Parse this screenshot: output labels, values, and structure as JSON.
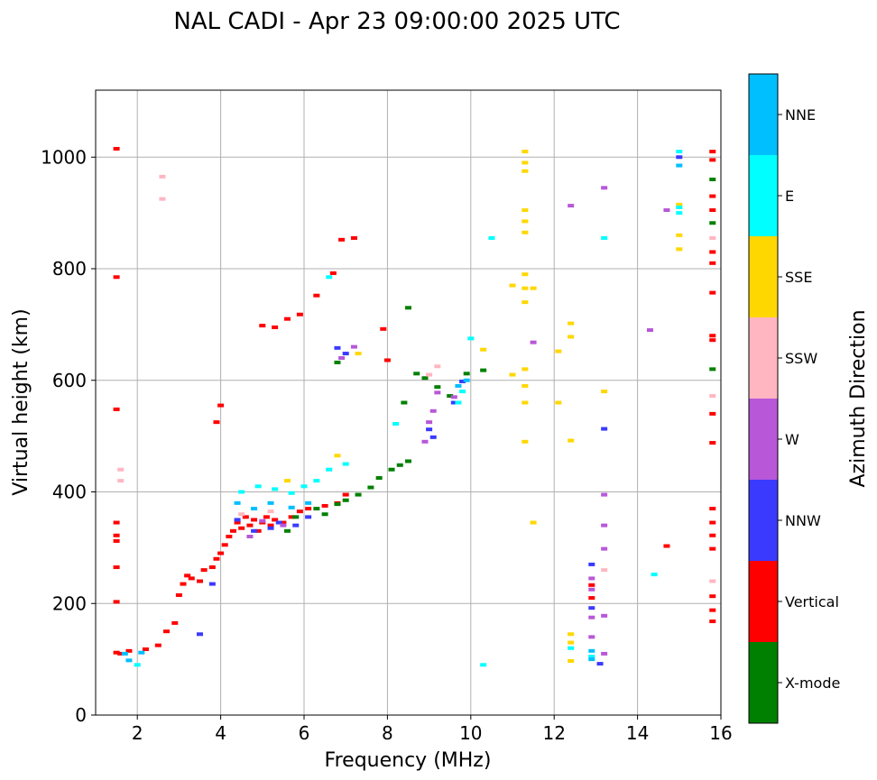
{
  "chart_data": {
    "type": "scatter",
    "title": "NAL CADI - Apr 23 09:00:00 2025 UTC",
    "xlabel": "Frequency (MHz)",
    "ylabel": "Virtual height (km)",
    "xlim": [
      1,
      16
    ],
    "ylim": [
      0,
      1120
    ],
    "xticks": [
      2,
      4,
      6,
      8,
      10,
      12,
      14,
      16
    ],
    "xtick_labels": [
      "2",
      "4",
      "6",
      "8",
      "10",
      "12",
      "14",
      "16"
    ],
    "yticks": [
      0,
      200,
      400,
      600,
      800,
      1000
    ],
    "ytick_labels": [
      "0",
      "200",
      "400",
      "600",
      "800",
      "1000"
    ],
    "grid": true,
    "colorbar": {
      "label": "Azimuth Direction",
      "categories": [
        {
          "name": "X-mode",
          "color": "#008000"
        },
        {
          "name": "Vertical",
          "color": "#ff0000"
        },
        {
          "name": "NNW",
          "color": "#3a3aff"
        },
        {
          "name": "W",
          "color": "#b857d8"
        },
        {
          "name": "SSW",
          "color": "#ffb6c1"
        },
        {
          "name": "SSE",
          "color": "#ffd700"
        },
        {
          "name": "E",
          "color": "#00ffff"
        },
        {
          "name": "NNE",
          "color": "#00bfff"
        }
      ]
    },
    "series": [
      {
        "name": "Vertical",
        "color": "#ff0000",
        "points": [
          [
            1.5,
            112
          ],
          [
            1.6,
            110
          ],
          [
            1.8,
            115
          ],
          [
            2.2,
            118
          ],
          [
            2.5,
            125
          ],
          [
            2.7,
            150
          ],
          [
            2.9,
            165
          ],
          [
            3.0,
            215
          ],
          [
            3.1,
            235
          ],
          [
            3.2,
            250
          ],
          [
            3.3,
            245
          ],
          [
            3.5,
            240
          ],
          [
            3.6,
            260
          ],
          [
            3.8,
            265
          ],
          [
            3.9,
            280
          ],
          [
            4.0,
            290
          ],
          [
            4.1,
            305
          ],
          [
            4.2,
            320
          ],
          [
            4.3,
            330
          ],
          [
            4.4,
            345
          ],
          [
            4.5,
            335
          ],
          [
            4.6,
            355
          ],
          [
            4.7,
            340
          ],
          [
            4.8,
            350
          ],
          [
            4.9,
            330
          ],
          [
            5.0,
            345
          ],
          [
            5.1,
            355
          ],
          [
            5.2,
            340
          ],
          [
            5.3,
            350
          ],
          [
            5.5,
            345
          ],
          [
            5.7,
            355
          ],
          [
            5.9,
            365
          ],
          [
            6.1,
            370
          ],
          [
            6.5,
            375
          ],
          [
            6.8,
            380
          ],
          [
            7.0,
            395
          ],
          [
            3.9,
            525
          ],
          [
            4.0,
            555
          ],
          [
            5.0,
            698
          ],
          [
            5.3,
            695
          ],
          [
            5.6,
            710
          ],
          [
            5.9,
            718
          ],
          [
            6.3,
            752
          ],
          [
            6.7,
            792
          ],
          [
            6.9,
            852
          ],
          [
            7.2,
            855
          ],
          [
            1.5,
            1015
          ],
          [
            1.5,
            785
          ],
          [
            1.5,
            548
          ],
          [
            1.5,
            345
          ],
          [
            1.5,
            322
          ],
          [
            1.5,
            312
          ],
          [
            1.5,
            265
          ],
          [
            1.5,
            203
          ],
          [
            15.8,
            1010
          ],
          [
            15.8,
            995
          ],
          [
            15.8,
            930
          ],
          [
            15.8,
            905
          ],
          [
            15.8,
            830
          ],
          [
            15.8,
            810
          ],
          [
            15.8,
            757
          ],
          [
            15.8,
            680
          ],
          [
            15.8,
            672
          ],
          [
            15.8,
            540
          ],
          [
            15.8,
            488
          ],
          [
            15.8,
            370
          ],
          [
            15.8,
            345
          ],
          [
            15.8,
            322
          ],
          [
            15.8,
            298
          ],
          [
            15.8,
            213
          ],
          [
            15.8,
            188
          ],
          [
            15.8,
            168
          ],
          [
            14.7,
            303
          ],
          [
            12.9,
            233
          ],
          [
            12.9,
            210
          ],
          [
            8.0,
            636
          ],
          [
            7.9,
            692
          ]
        ]
      },
      {
        "name": "X-mode",
        "color": "#008000",
        "points": [
          [
            5.6,
            330
          ],
          [
            5.8,
            355
          ],
          [
            6.3,
            370
          ],
          [
            6.5,
            360
          ],
          [
            6.8,
            378
          ],
          [
            7.0,
            385
          ],
          [
            7.3,
            395
          ],
          [
            7.6,
            408
          ],
          [
            7.8,
            425
          ],
          [
            8.1,
            440
          ],
          [
            8.3,
            448
          ],
          [
            8.5,
            455
          ],
          [
            8.7,
            612
          ],
          [
            8.9,
            604
          ],
          [
            9.2,
            588
          ],
          [
            9.5,
            572
          ],
          [
            9.9,
            612
          ],
          [
            10.3,
            618
          ],
          [
            8.4,
            560
          ],
          [
            8.5,
            730
          ],
          [
            6.8,
            632
          ],
          [
            15.8,
            960
          ],
          [
            15.8,
            882
          ],
          [
            15.8,
            620
          ]
        ]
      },
      {
        "name": "NNW",
        "color": "#3a3aff",
        "points": [
          [
            3.8,
            235
          ],
          [
            4.4,
            350
          ],
          [
            4.8,
            330
          ],
          [
            5.2,
            335
          ],
          [
            5.4,
            345
          ],
          [
            5.8,
            340
          ],
          [
            6.1,
            355
          ],
          [
            9.0,
            512
          ],
          [
            9.1,
            498
          ],
          [
            9.6,
            560
          ],
          [
            9.8,
            598
          ],
          [
            6.8,
            658
          ],
          [
            7.0,
            648
          ],
          [
            13.2,
            513
          ],
          [
            12.9,
            270
          ],
          [
            12.9,
            192
          ],
          [
            13.1,
            92
          ],
          [
            15.0,
            1000
          ],
          [
            3.5,
            145
          ]
        ]
      },
      {
        "name": "W",
        "color": "#b857d8",
        "points": [
          [
            4.7,
            320
          ],
          [
            5.0,
            348
          ],
          [
            5.5,
            340
          ],
          [
            8.9,
            490
          ],
          [
            9.0,
            525
          ],
          [
            9.1,
            545
          ],
          [
            9.2,
            578
          ],
          [
            9.6,
            570
          ],
          [
            6.9,
            640
          ],
          [
            7.2,
            660
          ],
          [
            12.9,
            245
          ],
          [
            12.9,
            225
          ],
          [
            12.9,
            175
          ],
          [
            12.9,
            140
          ],
          [
            13.2,
            395
          ],
          [
            13.2,
            340
          ],
          [
            13.2,
            298
          ],
          [
            13.2,
            178
          ],
          [
            13.2,
            110
          ],
          [
            13.2,
            945
          ],
          [
            12.4,
            913
          ],
          [
            14.3,
            690
          ],
          [
            11.5,
            668
          ],
          [
            14.7,
            905
          ]
        ]
      },
      {
        "name": "SSW",
        "color": "#ffb6c1",
        "points": [
          [
            2.6,
            965
          ],
          [
            2.6,
            925
          ],
          [
            1.6,
            440
          ],
          [
            1.6,
            420
          ],
          [
            4.5,
            360
          ],
          [
            5.2,
            365
          ],
          [
            9.0,
            610
          ],
          [
            9.2,
            625
          ],
          [
            15.8,
            855
          ],
          [
            15.8,
            572
          ],
          [
            15.8,
            240
          ],
          [
            13.2,
            260
          ]
        ]
      },
      {
        "name": "SSE",
        "color": "#ffd700",
        "points": [
          [
            11.3,
            1010
          ],
          [
            11.3,
            990
          ],
          [
            11.3,
            975
          ],
          [
            11.3,
            905
          ],
          [
            11.3,
            885
          ],
          [
            11.3,
            865
          ],
          [
            11.3,
            790
          ],
          [
            11.3,
            765
          ],
          [
            11.3,
            740
          ],
          [
            11.3,
            620
          ],
          [
            11.3,
            590
          ],
          [
            11.3,
            560
          ],
          [
            11.3,
            490
          ],
          [
            11.5,
            765
          ],
          [
            11.0,
            770
          ],
          [
            11.0,
            610
          ],
          [
            10.3,
            655
          ],
          [
            12.4,
            702
          ],
          [
            12.4,
            678
          ],
          [
            12.4,
            492
          ],
          [
            12.1,
            560
          ],
          [
            12.1,
            652
          ],
          [
            12.4,
            145
          ],
          [
            12.4,
            130
          ],
          [
            12.4,
            97
          ],
          [
            13.2,
            580
          ],
          [
            15.0,
            860
          ],
          [
            15.0,
            835
          ],
          [
            15.0,
            915
          ],
          [
            11.5,
            345
          ],
          [
            5.6,
            420
          ],
          [
            6.8,
            465
          ],
          [
            7.3,
            648
          ]
        ]
      },
      {
        "name": "E",
        "color": "#00ffff",
        "points": [
          [
            4.5,
            400
          ],
          [
            4.9,
            410
          ],
          [
            5.3,
            405
          ],
          [
            5.7,
            398
          ],
          [
            6.0,
            410
          ],
          [
            6.3,
            420
          ],
          [
            6.6,
            440
          ],
          [
            7.0,
            450
          ],
          [
            9.7,
            560
          ],
          [
            9.8,
            580
          ],
          [
            10.0,
            675
          ],
          [
            10.5,
            855
          ],
          [
            13.2,
            855
          ],
          [
            15.0,
            900
          ],
          [
            15.0,
            910
          ],
          [
            15.0,
            1010
          ],
          [
            14.4,
            252
          ],
          [
            12.4,
            120
          ],
          [
            10.3,
            90
          ],
          [
            12.9,
            105
          ],
          [
            2.0,
            90
          ],
          [
            6.6,
            785
          ],
          [
            8.2,
            522
          ]
        ]
      },
      {
        "name": "NNE",
        "color": "#00bfff",
        "points": [
          [
            4.4,
            380
          ],
          [
            4.8,
            370
          ],
          [
            5.2,
            380
          ],
          [
            5.7,
            372
          ],
          [
            6.1,
            380
          ],
          [
            9.7,
            590
          ],
          [
            9.9,
            600
          ],
          [
            12.9,
            115
          ],
          [
            12.9,
            100
          ],
          [
            15.0,
            985
          ],
          [
            1.7,
            110
          ],
          [
            2.1,
            112
          ],
          [
            1.8,
            98
          ]
        ]
      }
    ]
  }
}
